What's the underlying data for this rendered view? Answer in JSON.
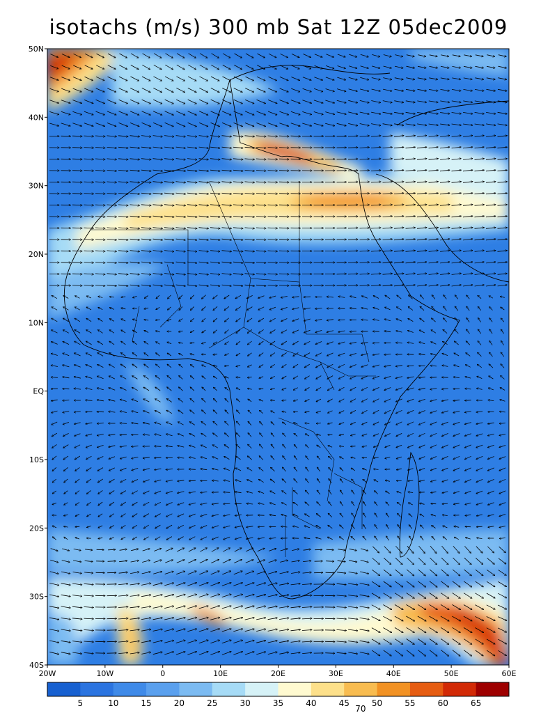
{
  "title": "isotachs (m/s) 300 mb Sat 12Z 05dec2009",
  "map": {
    "lon_range": [
      -20,
      60
    ],
    "lat_range": [
      -40,
      50
    ],
    "lat_labels": [
      "50N",
      "40N",
      "30N",
      "20N",
      "10N",
      "EQ",
      "10S",
      "20S",
      "30S",
      "40S"
    ],
    "lon_labels": [
      "20W",
      "10W",
      "0",
      "10E",
      "20E",
      "30E",
      "40E",
      "50E",
      "60E"
    ]
  },
  "colorbar": {
    "labels": [
      "5",
      "10",
      "15",
      "20",
      "25",
      "30",
      "35",
      "40",
      "45",
      "50",
      "55",
      "60",
      "65"
    ],
    "extra_label": "70",
    "colors": [
      "#1760d0",
      "#2b74e0",
      "#3f8ae8",
      "#5aa0ee",
      "#7cbbf2",
      "#a6dbf6",
      "#d6f2f7",
      "#fffad0",
      "#fde08a",
      "#f8bc50",
      "#f29224",
      "#e65d12",
      "#d22a06",
      "#9e0000"
    ]
  }
}
